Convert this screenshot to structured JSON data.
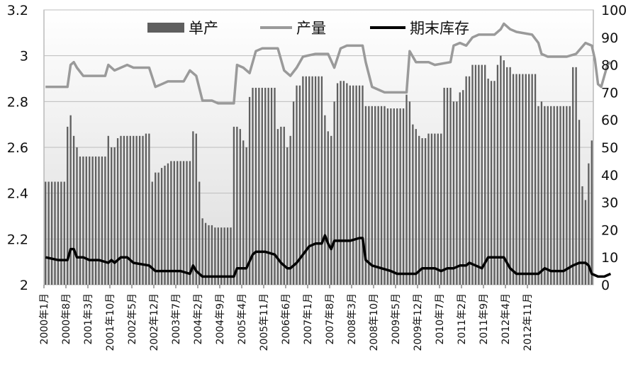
{
  "chart_data": {
    "type": "bar+line",
    "title": "",
    "x_axis": {
      "tick_labels": [
        "2000年1月",
        "2000年8月",
        "2001年3月",
        "2001年10月",
        "2002年5月",
        "2002年12月",
        "2003年7月",
        "2004年2月",
        "2004年9月",
        "2005年4月",
        "2005年11月",
        "2006年6月",
        "2007年1月",
        "2007年8月",
        "2008年3月",
        "2008年10月",
        "2009年5月",
        "2009年12月",
        "2010年7月",
        "2011年2月",
        "2011年9月",
        "2012年4月",
        "2012年11月"
      ]
    },
    "left_axis": {
      "range": [
        2,
        3.2
      ],
      "ticks": [
        "2",
        "2.2",
        "2.4",
        "2.6",
        "2.8",
        "3",
        "3.2"
      ]
    },
    "right_axis": {
      "range": [
        0,
        100
      ],
      "ticks": [
        "0",
        "10",
        "20",
        "30",
        "40",
        "50",
        "60",
        "70",
        "80",
        "90",
        "100"
      ]
    },
    "legend": {
      "position": "top",
      "items": [
        "单产",
        "产量",
        "期末库存"
      ]
    },
    "colors": {
      "bars": "#5f5f5f",
      "production": "#9a9a9a",
      "inventory": "#000000",
      "plot_bg_top": "#ffffff",
      "plot_bg_bottom": "#dcdcdc"
    },
    "series": [
      {
        "name": "单产",
        "type": "bar",
        "axis": "left",
        "values": [
          2.45,
          2.45,
          2.45,
          2.45,
          2.45,
          2.45,
          2.45,
          2.69,
          2.74,
          2.65,
          2.6,
          2.56,
          2.56,
          2.56,
          2.56,
          2.56,
          2.56,
          2.56,
          2.56,
          2.56,
          2.65,
          2.6,
          2.6,
          2.64,
          2.65,
          2.65,
          2.65,
          2.65,
          2.65,
          2.65,
          2.65,
          2.65,
          2.66,
          2.66,
          2.45,
          2.49,
          2.49,
          2.51,
          2.52,
          2.53,
          2.54,
          2.54,
          2.54,
          2.54,
          2.54,
          2.54,
          2.54,
          2.67,
          2.66,
          2.45,
          2.29,
          2.27,
          2.26,
          2.26,
          2.25,
          2.25,
          2.25,
          2.25,
          2.25,
          2.25,
          2.69,
          2.69,
          2.68,
          2.63,
          2.6,
          2.82,
          2.86,
          2.86,
          2.86,
          2.86,
          2.86,
          2.86,
          2.86,
          2.86,
          2.68,
          2.69,
          2.69,
          2.6,
          2.65,
          2.8,
          2.87,
          2.87,
          2.91,
          2.91,
          2.91,
          2.91,
          2.91,
          2.91,
          2.91,
          2.74,
          2.67,
          2.65,
          2.8,
          2.88,
          2.89,
          2.89,
          2.88,
          2.87,
          2.87,
          2.87,
          2.87,
          2.87,
          2.78,
          2.78,
          2.78,
          2.78,
          2.78,
          2.78,
          2.78,
          2.77,
          2.77,
          2.77,
          2.77,
          2.77,
          2.77,
          2.83,
          2.8,
          2.7,
          2.68,
          2.65,
          2.64,
          2.64,
          2.66,
          2.66,
          2.66,
          2.66,
          2.66,
          2.86,
          2.86,
          2.86,
          2.8,
          2.8,
          2.84,
          2.85,
          2.91,
          2.91,
          2.96,
          2.96,
          2.96,
          2.96,
          2.96,
          2.9,
          2.89,
          2.89,
          2.96,
          3.0,
          2.98,
          2.95,
          2.95,
          2.92,
          2.92,
          2.92,
          2.92,
          2.92,
          2.92,
          2.92,
          2.92,
          2.78,
          2.8,
          2.78,
          2.78,
          2.78,
          2.78,
          2.78,
          2.78,
          2.78,
          2.78,
          2.78,
          2.95,
          2.95,
          2.72,
          2.43,
          2.37,
          2.53,
          2.63
        ]
      },
      {
        "name": "产量",
        "type": "line",
        "axis": "right",
        "points": [
          [
            0,
            72
          ],
          [
            7,
            72
          ],
          [
            8,
            80
          ],
          [
            9,
            81
          ],
          [
            10,
            79
          ],
          [
            12,
            76
          ],
          [
            19,
            76
          ],
          [
            20,
            80
          ],
          [
            22,
            78
          ],
          [
            24,
            79
          ],
          [
            26,
            80
          ],
          [
            28,
            79
          ],
          [
            33,
            79
          ],
          [
            35,
            72
          ],
          [
            37,
            73
          ],
          [
            39,
            74
          ],
          [
            44,
            74
          ],
          [
            46,
            78
          ],
          [
            48,
            76
          ],
          [
            50,
            67
          ],
          [
            53,
            67
          ],
          [
            55,
            66
          ],
          [
            60,
            66
          ],
          [
            61,
            80
          ],
          [
            63,
            79
          ],
          [
            65,
            77
          ],
          [
            67,
            85
          ],
          [
            69,
            86
          ],
          [
            74,
            86
          ],
          [
            76,
            78
          ],
          [
            78,
            76
          ],
          [
            80,
            79
          ],
          [
            82,
            83
          ],
          [
            86,
            84
          ],
          [
            90,
            84
          ],
          [
            92,
            79
          ],
          [
            94,
            86
          ],
          [
            96,
            87
          ],
          [
            101,
            87
          ],
          [
            102,
            81
          ],
          [
            104,
            72
          ],
          [
            106,
            71
          ],
          [
            108,
            70
          ],
          [
            115,
            70
          ],
          [
            116,
            85
          ],
          [
            118,
            81
          ],
          [
            122,
            81
          ],
          [
            124,
            80
          ],
          [
            129,
            81
          ],
          [
            130,
            87
          ],
          [
            132,
            88
          ],
          [
            134,
            87
          ],
          [
            136,
            90
          ],
          [
            138,
            91
          ],
          [
            141,
            91
          ],
          [
            143,
            91
          ],
          [
            145,
            93
          ],
          [
            146,
            95
          ],
          [
            148,
            93
          ],
          [
            150,
            92
          ],
          [
            155,
            91
          ],
          [
            157,
            88
          ],
          [
            158,
            84
          ],
          [
            160,
            83
          ],
          [
            166,
            83
          ],
          [
            169,
            84
          ],
          [
            172,
            88
          ],
          [
            174,
            87
          ],
          [
            175,
            82
          ],
          [
            176,
            73
          ],
          [
            177,
            72
          ],
          [
            179,
            80
          ],
          [
            180,
            81
          ]
        ]
      },
      {
        "name": "期末库存",
        "type": "line",
        "axis": "right",
        "points": [
          [
            0,
            10
          ],
          [
            4,
            9
          ],
          [
            7,
            9
          ],
          [
            8,
            13
          ],
          [
            9,
            13
          ],
          [
            10,
            10
          ],
          [
            12,
            10
          ],
          [
            14,
            9
          ],
          [
            17,
            9
          ],
          [
            20,
            8
          ],
          [
            21,
            9
          ],
          [
            22,
            8
          ],
          [
            24,
            10
          ],
          [
            26,
            10
          ],
          [
            28,
            8
          ],
          [
            33,
            7
          ],
          [
            35,
            5
          ],
          [
            37,
            5
          ],
          [
            43,
            5
          ],
          [
            46,
            4
          ],
          [
            47,
            7
          ],
          [
            48,
            5
          ],
          [
            50,
            3
          ],
          [
            52,
            3
          ],
          [
            60,
            3
          ],
          [
            61,
            6
          ],
          [
            64,
            6
          ],
          [
            66,
            11
          ],
          [
            67,
            12
          ],
          [
            70,
            12
          ],
          [
            73,
            11
          ],
          [
            75,
            8
          ],
          [
            77,
            6
          ],
          [
            78,
            6
          ],
          [
            80,
            8
          ],
          [
            82,
            11
          ],
          [
            84,
            14
          ],
          [
            86,
            15
          ],
          [
            88,
            15
          ],
          [
            89,
            18
          ],
          [
            90,
            15
          ],
          [
            91,
            13
          ],
          [
            92,
            16
          ],
          [
            94,
            16
          ],
          [
            97,
            16
          ],
          [
            100,
            17
          ],
          [
            101,
            17
          ],
          [
            102,
            9
          ],
          [
            104,
            7
          ],
          [
            107,
            6
          ],
          [
            110,
            5
          ],
          [
            112,
            4
          ],
          [
            115,
            4
          ],
          [
            118,
            4
          ],
          [
            120,
            6
          ],
          [
            124,
            6
          ],
          [
            126,
            5
          ],
          [
            128,
            6
          ],
          [
            130,
            6
          ],
          [
            132,
            7
          ],
          [
            134,
            7
          ],
          [
            135,
            8
          ],
          [
            137,
            7
          ],
          [
            139,
            6
          ],
          [
            141,
            10
          ],
          [
            143,
            10
          ],
          [
            146,
            10
          ],
          [
            148,
            6
          ],
          [
            150,
            4
          ],
          [
            157,
            4
          ],
          [
            159,
            6
          ],
          [
            161,
            5
          ],
          [
            165,
            5
          ],
          [
            168,
            7
          ],
          [
            170,
            8
          ],
          [
            172,
            8
          ],
          [
            173,
            7
          ],
          [
            174,
            4
          ],
          [
            176,
            3
          ],
          [
            178,
            3
          ],
          [
            180,
            4
          ]
        ]
      }
    ]
  }
}
